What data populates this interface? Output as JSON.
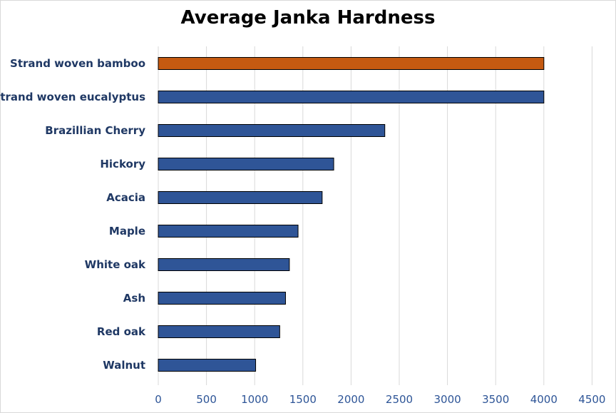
{
  "chart_data": {
    "type": "bar",
    "orientation": "horizontal",
    "title": "Average Janka Hardness",
    "xlabel": "",
    "ylabel": "",
    "categories": [
      "Strand woven bamboo",
      "Strand woven eucalyptus",
      "Brazillian Cherry",
      "Hickory",
      "Acacia",
      "Maple",
      "White oak",
      "Ash",
      "Red oak",
      "Walnut"
    ],
    "values": [
      4000,
      4000,
      2350,
      1820,
      1700,
      1450,
      1360,
      1320,
      1260,
      1010
    ],
    "xlim": [
      0,
      4500
    ],
    "x_ticks": [
      "0",
      "500",
      "1000",
      "1500",
      "2000",
      "2500",
      "3000",
      "3500",
      "4000",
      "4500"
    ],
    "grid": "vertical",
    "legend": "none",
    "colors": {
      "default": "#2f5597",
      "highlight": "#c55a11",
      "highlight_index": 0,
      "grid": "#d9d9d9",
      "bar_border": "#000000"
    }
  }
}
